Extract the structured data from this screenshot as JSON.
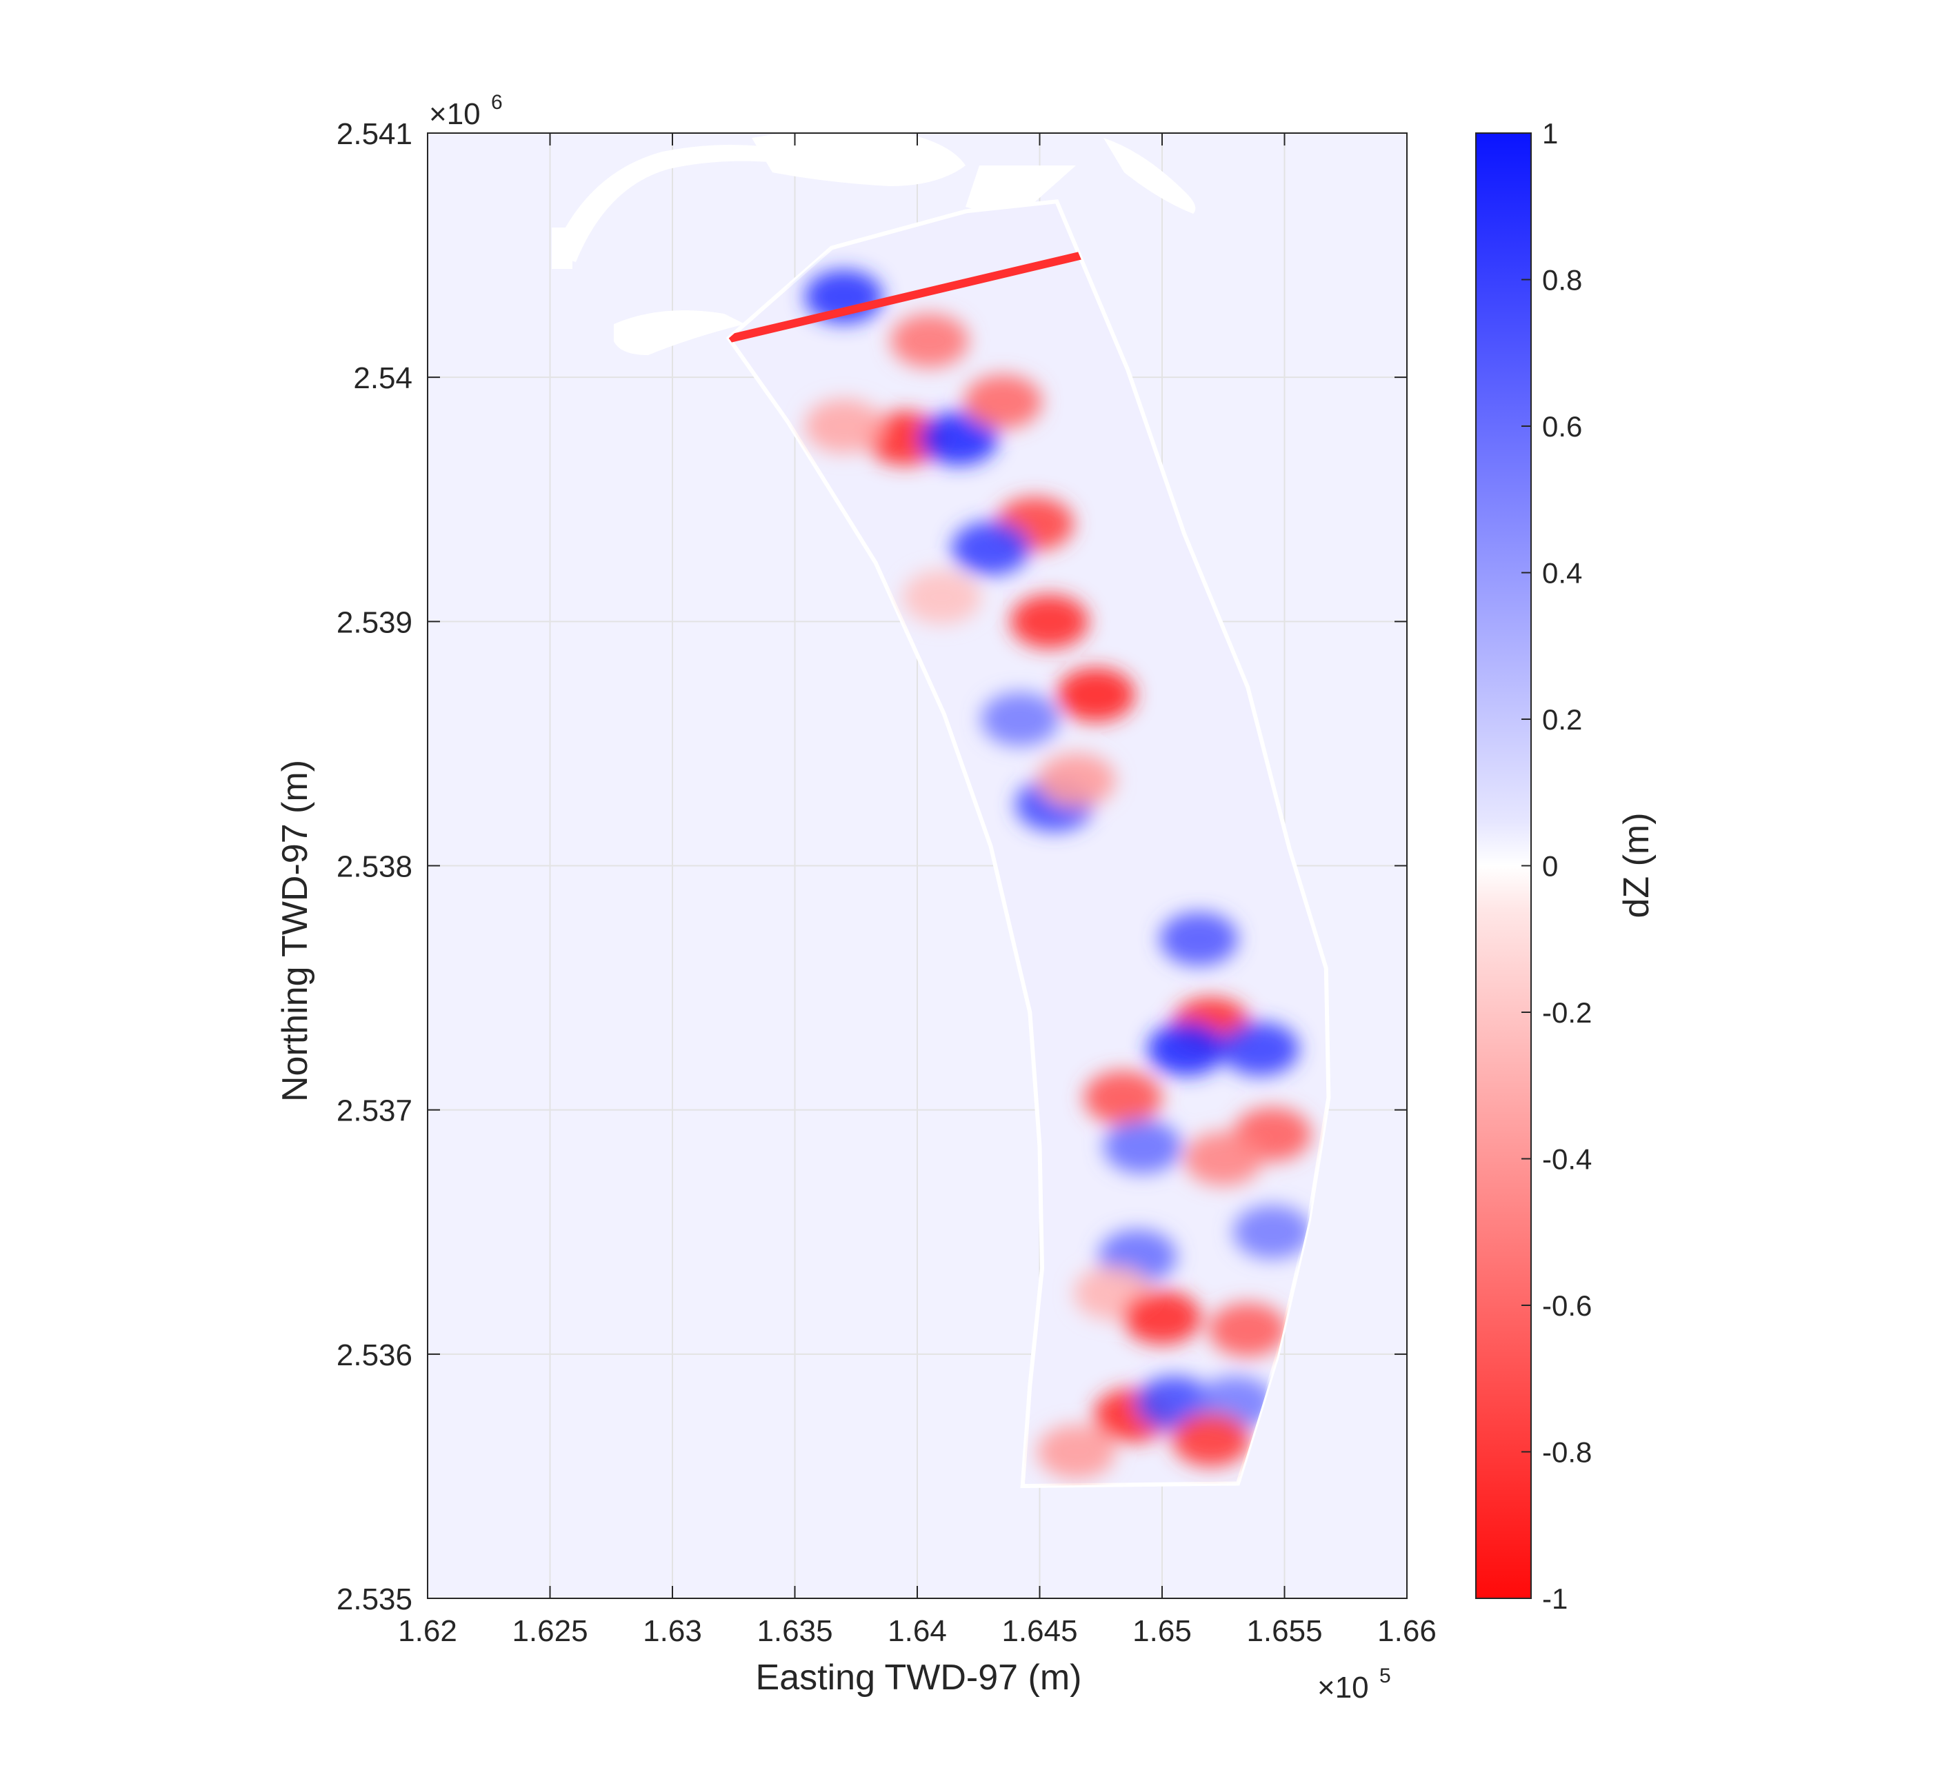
{
  "chart_data": {
    "type": "heatmap",
    "xlabel": "Easting TWD-97 (m)",
    "ylabel": "Northing TWD-97 (m)",
    "x_exponent": "×10",
    "x_exponent_power": "5",
    "y_exponent": "×10",
    "y_exponent_power": "6",
    "xlim": [
      162000,
      166000
    ],
    "ylim": [
      2535000,
      2541000
    ],
    "x_ticks": [
      1.62,
      1.625,
      1.63,
      1.635,
      1.64,
      1.645,
      1.65,
      1.655,
      1.66
    ],
    "x_tick_labels": [
      "1.62",
      "1.625",
      "1.63",
      "1.635",
      "1.64",
      "1.645",
      "1.65",
      "1.655",
      "1.66"
    ],
    "y_ticks": [
      2.535,
      2.536,
      2.537,
      2.538,
      2.539,
      2.54,
      2.541
    ],
    "y_tick_labels": [
      "2.535",
      "2.536",
      "2.537",
      "2.538",
      "2.539",
      "2.54",
      "2.541"
    ],
    "grid": true,
    "colorbar": {
      "label": "dZ (m)",
      "range": [
        -1,
        1
      ],
      "ticks": [
        1,
        0.8,
        0.6,
        0.4,
        0.2,
        0,
        -0.2,
        -0.4,
        -0.6,
        -0.8,
        -1
      ],
      "tick_labels": [
        "1",
        "0.8",
        "0.6",
        "0.4",
        "0.2",
        "0",
        "-0.2",
        "-0.4",
        "-0.6",
        "-0.8",
        "-1"
      ],
      "positive_color": "#0a14ff",
      "zero_color": "#ffffff",
      "negative_color": "#ff0a0a",
      "background_color": "#f2f2ff"
    },
    "coastline_strip": [
      [
        164200,
        2540680
      ],
      [
        164570,
        2540720
      ],
      [
        164860,
        2540030
      ],
      [
        165090,
        2539360
      ],
      [
        165350,
        2538730
      ],
      [
        165520,
        2538070
      ],
      [
        165670,
        2537580
      ],
      [
        165680,
        2537050
      ],
      [
        165600,
        2536550
      ],
      [
        165470,
        2535990
      ],
      [
        165310,
        2535470
      ],
      [
        164430,
        2535460
      ],
      [
        164460,
        2535870
      ],
      [
        164510,
        2536350
      ],
      [
        164500,
        2536850
      ],
      [
        164460,
        2537400
      ],
      [
        164300,
        2538080
      ],
      [
        164110,
        2538620
      ],
      [
        163830,
        2539240
      ],
      [
        163470,
        2539820
      ],
      [
        163230,
        2540160
      ],
      [
        163650,
        2540530
      ]
    ],
    "anomalies": [
      {
        "x": 163700,
        "y": 2540330,
        "dz": 0.85
      },
      {
        "x": 164050,
        "y": 2540150,
        "dz": -0.55
      },
      {
        "x": 163950,
        "y": 2539750,
        "dz": -0.85
      },
      {
        "x": 164170,
        "y": 2539750,
        "dz": 0.9
      },
      {
        "x": 163700,
        "y": 2539800,
        "dz": -0.35
      },
      {
        "x": 164350,
        "y": 2539900,
        "dz": -0.6
      },
      {
        "x": 164480,
        "y": 2539400,
        "dz": -0.75
      },
      {
        "x": 164300,
        "y": 2539300,
        "dz": 0.8
      },
      {
        "x": 164540,
        "y": 2539000,
        "dz": -0.85
      },
      {
        "x": 164100,
        "y": 2539100,
        "dz": -0.25
      },
      {
        "x": 164730,
        "y": 2538700,
        "dz": -0.9
      },
      {
        "x": 164420,
        "y": 2538600,
        "dz": 0.55
      },
      {
        "x": 164560,
        "y": 2538250,
        "dz": 0.75
      },
      {
        "x": 164650,
        "y": 2538350,
        "dz": -0.4
      },
      {
        "x": 165150,
        "y": 2537700,
        "dz": 0.7
      },
      {
        "x": 165200,
        "y": 2537350,
        "dz": -0.85
      },
      {
        "x": 165100,
        "y": 2537250,
        "dz": 0.9
      },
      {
        "x": 165400,
        "y": 2537250,
        "dz": 0.8
      },
      {
        "x": 164840,
        "y": 2537050,
        "dz": -0.7
      },
      {
        "x": 165450,
        "y": 2536900,
        "dz": -0.65
      },
      {
        "x": 164920,
        "y": 2536850,
        "dz": 0.6
      },
      {
        "x": 165250,
        "y": 2536800,
        "dz": -0.5
      },
      {
        "x": 164900,
        "y": 2536400,
        "dz": 0.6
      },
      {
        "x": 165450,
        "y": 2536500,
        "dz": 0.55
      },
      {
        "x": 164800,
        "y": 2536250,
        "dz": -0.3
      },
      {
        "x": 165000,
        "y": 2536150,
        "dz": -0.85
      },
      {
        "x": 165350,
        "y": 2536100,
        "dz": -0.65
      },
      {
        "x": 164880,
        "y": 2535750,
        "dz": -0.85
      },
      {
        "x": 165050,
        "y": 2535800,
        "dz": 0.75
      },
      {
        "x": 165300,
        "y": 2535800,
        "dz": 0.55
      },
      {
        "x": 164650,
        "y": 2535600,
        "dz": -0.4
      },
      {
        "x": 165200,
        "y": 2535650,
        "dz": -0.8
      }
    ],
    "edge_bands": [
      {
        "x1": 163240,
        "y1": 2540160,
        "x2": 164800,
        "y2": 2540530,
        "dz": -0.85
      }
    ]
  }
}
